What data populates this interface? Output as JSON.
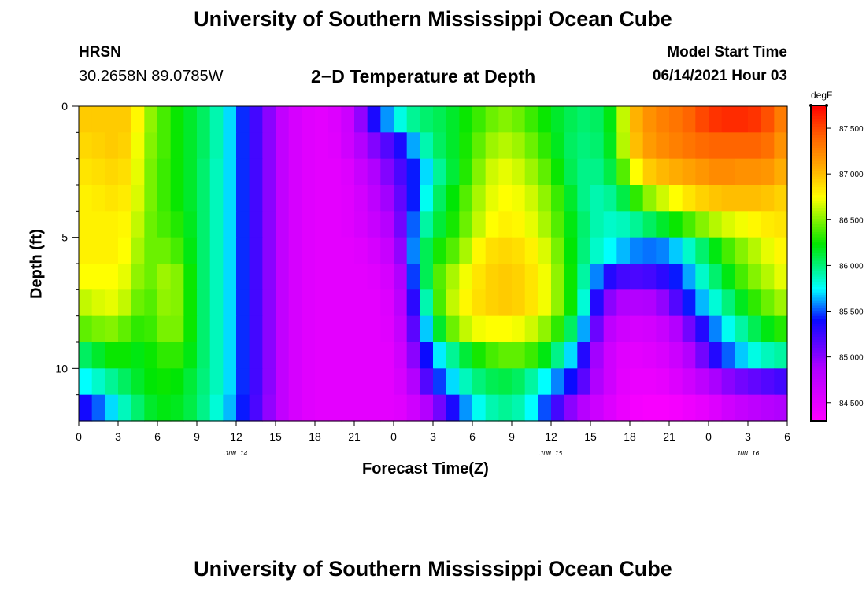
{
  "header": {
    "title": "University of Southern Mississippi Ocean Cube",
    "station": "HRSN",
    "coords": "30.2658N  89.0785W",
    "subtitle": "2−D Temperature at Depth",
    "model_start_label": "Model Start Time",
    "model_start_value": "06/14/2021 Hour 03"
  },
  "footer": {
    "title": "University of Southern Mississippi Ocean Cube"
  },
  "chart_data": {
    "type": "heatmap",
    "title": "2-D Temperature at Depth",
    "xlabel": "Forecast Time(Z)",
    "ylabel": "Depth (ft)",
    "xlim": [
      0,
      54
    ],
    "ylim": [
      0,
      12
    ],
    "x_ticks": [
      "0",
      "3",
      "6",
      "9",
      "12",
      "15",
      "18",
      "21",
      "0",
      "3",
      "6",
      "9",
      "12",
      "15",
      "18",
      "21",
      "0",
      "3",
      "6"
    ],
    "y_ticks": [
      {
        "value": 0,
        "label": "0"
      },
      {
        "value": 5,
        "label": "5"
      },
      {
        "value": 10,
        "label": "10"
      }
    ],
    "y_minor_ticks": [
      1,
      2,
      3,
      4,
      6,
      7,
      8,
      9,
      11
    ],
    "day_labels": [
      {
        "hour": 12,
        "label": "JUN 14"
      },
      {
        "hour": 36,
        "label": "JUN 15"
      },
      {
        "hour": 51,
        "label": "JUN 16"
      }
    ],
    "colorbar": {
      "unit": "degF",
      "min": 84.3,
      "max": 87.75,
      "ticks": [
        "87.500",
        "87.000",
        "86.500",
        "86.000",
        "85.500",
        "85.000",
        "84.500"
      ],
      "tick_values": [
        87.5,
        87.0,
        86.5,
        86.0,
        85.5,
        85.0,
        84.5
      ]
    },
    "depths_ft": [
      0.5,
      1.5,
      2.5,
      3.5,
      4.5,
      5.5,
      6.5,
      7.5,
      8.5,
      9.5,
      10.5,
      11.5
    ],
    "hour_keys": [
      0,
      1,
      2,
      3,
      4,
      5,
      6,
      7,
      8,
      9,
      10,
      11,
      12,
      13,
      14,
      15,
      16,
      17,
      18,
      19,
      20,
      21,
      22,
      23,
      24,
      25,
      26,
      27,
      28,
      29,
      30,
      31,
      32,
      33,
      34,
      35,
      36,
      37,
      38,
      39,
      40,
      41,
      42,
      43,
      44,
      45,
      46,
      47,
      48,
      49,
      50,
      51,
      52,
      53,
      54
    ],
    "temps_degF": [
      [
        86.95,
        86.95,
        86.95,
        86.95,
        86.95,
        86.6,
        86.45,
        86.3,
        86.2,
        86.1,
        86.0,
        85.8,
        85.6,
        85.3,
        85.15,
        84.85,
        84.65,
        84.55,
        84.5,
        84.5,
        84.6,
        84.75,
        85.2,
        85.5,
        85.7,
        85.9,
        86.0,
        86.05,
        86.1,
        86.2,
        86.3,
        86.4,
        86.5,
        86.5,
        86.4,
        86.3,
        86.2,
        86.1,
        86.05,
        86.0,
        86.1,
        86.3,
        86.95,
        87.15,
        87.25,
        87.3,
        87.35,
        87.45,
        87.55,
        87.6,
        87.6,
        87.6,
        87.55,
        87.4,
        87.2
      ],
      [
        86.9,
        86.9,
        86.95,
        86.95,
        86.9,
        86.55,
        86.45,
        86.3,
        86.2,
        86.1,
        86.0,
        85.8,
        85.6,
        85.3,
        85.15,
        84.85,
        84.65,
        84.55,
        84.5,
        84.5,
        84.55,
        84.75,
        84.95,
        85.1,
        85.25,
        85.45,
        85.8,
        86.0,
        86.1,
        86.2,
        86.35,
        86.5,
        86.6,
        86.6,
        86.5,
        86.4,
        86.25,
        86.1,
        86.0,
        86.0,
        86.05,
        86.3,
        86.9,
        87.1,
        87.2,
        87.25,
        87.3,
        87.35,
        87.4,
        87.4,
        87.4,
        87.4,
        87.4,
        87.3,
        87.1
      ],
      [
        86.85,
        86.85,
        86.9,
        86.9,
        86.85,
        86.55,
        86.4,
        86.3,
        86.2,
        86.1,
        85.95,
        85.8,
        85.6,
        85.3,
        85.15,
        84.85,
        84.65,
        84.55,
        84.5,
        84.5,
        84.5,
        84.6,
        84.8,
        84.95,
        85.1,
        85.3,
        85.55,
        85.85,
        86.05,
        86.2,
        86.4,
        86.6,
        86.7,
        86.7,
        86.6,
        86.5,
        86.35,
        86.15,
        86.0,
        85.95,
        86.0,
        86.2,
        86.6,
        86.9,
        87.0,
        87.05,
        87.1,
        87.15,
        87.2,
        87.25,
        87.2,
        87.2,
        87.2,
        87.15,
        87.0
      ],
      [
        86.8,
        86.8,
        86.85,
        86.85,
        86.8,
        86.55,
        86.4,
        86.3,
        86.2,
        86.1,
        85.95,
        85.8,
        85.6,
        85.3,
        85.15,
        84.85,
        84.65,
        84.55,
        84.5,
        84.5,
        84.5,
        84.55,
        84.7,
        84.85,
        85.0,
        85.25,
        85.6,
        85.95,
        86.15,
        86.3,
        86.5,
        86.65,
        86.75,
        86.75,
        86.7,
        86.6,
        86.45,
        86.25,
        86.05,
        85.9,
        85.9,
        86.0,
        86.2,
        86.45,
        86.6,
        86.7,
        86.8,
        86.9,
        86.95,
        87.0,
        87.0,
        87.0,
        87.0,
        86.95,
        86.9
      ],
      [
        86.8,
        86.8,
        86.8,
        86.8,
        86.75,
        86.5,
        86.4,
        86.35,
        86.25,
        86.1,
        85.95,
        85.8,
        85.6,
        85.3,
        85.15,
        84.85,
        84.65,
        84.55,
        84.5,
        84.5,
        84.5,
        84.55,
        84.65,
        84.75,
        84.9,
        85.25,
        85.8,
        86.05,
        86.2,
        86.35,
        86.55,
        86.7,
        86.8,
        86.8,
        86.75,
        86.65,
        86.5,
        86.3,
        86.1,
        85.95,
        85.85,
        85.85,
        85.9,
        86.0,
        86.1,
        86.2,
        86.3,
        86.45,
        86.55,
        86.65,
        86.7,
        86.75,
        86.8,
        86.85,
        86.85
      ],
      [
        86.8,
        86.8,
        86.8,
        86.8,
        86.7,
        86.45,
        86.45,
        86.45,
        86.3,
        86.1,
        85.95,
        85.8,
        85.6,
        85.3,
        85.15,
        84.85,
        84.65,
        84.55,
        84.5,
        84.5,
        84.5,
        84.5,
        84.55,
        84.65,
        84.75,
        85.2,
        85.95,
        86.2,
        86.35,
        86.45,
        86.7,
        86.85,
        86.9,
        86.9,
        86.85,
        86.75,
        86.6,
        86.35,
        86.1,
        85.9,
        85.8,
        85.7,
        85.6,
        85.55,
        85.55,
        85.6,
        85.75,
        85.95,
        86.1,
        86.3,
        86.45,
        86.55,
        86.65,
        86.75,
        86.8
      ],
      [
        86.75,
        86.75,
        86.75,
        86.75,
        86.65,
        86.4,
        86.5,
        86.6,
        86.4,
        86.1,
        85.95,
        85.8,
        85.6,
        85.3,
        85.15,
        84.85,
        84.65,
        84.55,
        84.5,
        84.5,
        84.5,
        84.5,
        84.5,
        84.55,
        84.65,
        85.1,
        85.85,
        86.3,
        86.5,
        86.65,
        86.8,
        86.9,
        86.95,
        86.95,
        86.9,
        86.8,
        86.65,
        86.4,
        86.1,
        85.75,
        85.4,
        85.25,
        85.2,
        85.2,
        85.25,
        85.35,
        85.5,
        85.75,
        85.95,
        86.1,
        86.3,
        86.45,
        86.55,
        86.65,
        86.75
      ],
      [
        86.6,
        86.65,
        86.7,
        86.7,
        86.55,
        86.35,
        86.45,
        86.6,
        86.4,
        86.1,
        85.95,
        85.8,
        85.6,
        85.3,
        85.15,
        84.85,
        84.65,
        84.55,
        84.5,
        84.5,
        84.5,
        84.5,
        84.5,
        84.5,
        84.6,
        85.0,
        85.6,
        86.2,
        86.55,
        86.7,
        86.85,
        86.9,
        86.95,
        86.95,
        86.9,
        86.8,
        86.65,
        86.4,
        86.1,
        85.55,
        85.1,
        84.9,
        84.85,
        84.85,
        84.9,
        85.05,
        85.3,
        85.55,
        85.75,
        85.9,
        86.1,
        86.25,
        86.4,
        86.5,
        86.6
      ],
      [
        86.4,
        86.45,
        86.5,
        86.5,
        86.35,
        86.3,
        86.4,
        86.55,
        86.4,
        86.1,
        85.95,
        85.8,
        85.6,
        85.3,
        85.15,
        84.85,
        84.65,
        84.55,
        84.5,
        84.5,
        84.5,
        84.5,
        84.5,
        84.5,
        84.55,
        84.9,
        85.4,
        85.95,
        86.35,
        86.55,
        86.7,
        86.75,
        86.75,
        86.75,
        86.7,
        86.6,
        86.45,
        86.2,
        85.9,
        85.35,
        84.85,
        84.7,
        84.6,
        84.6,
        84.65,
        84.75,
        84.95,
        85.2,
        85.45,
        85.7,
        85.85,
        86.0,
        86.15,
        86.25,
        86.35
      ],
      [
        86.0,
        86.1,
        86.2,
        86.3,
        86.2,
        86.2,
        86.3,
        86.35,
        86.3,
        86.1,
        85.95,
        85.8,
        85.6,
        85.3,
        85.15,
        84.85,
        84.65,
        84.55,
        84.5,
        84.5,
        84.5,
        84.5,
        84.5,
        84.5,
        84.5,
        84.8,
        85.2,
        85.6,
        85.85,
        86.05,
        86.2,
        86.35,
        86.4,
        86.45,
        86.4,
        86.3,
        86.1,
        85.85,
        85.55,
        85.1,
        84.75,
        84.55,
        84.5,
        84.5,
        84.55,
        84.6,
        84.75,
        84.95,
        85.2,
        85.45,
        85.6,
        85.75,
        85.85,
        85.9,
        85.95
      ],
      [
        85.7,
        85.8,
        85.9,
        86.0,
        86.1,
        86.2,
        86.25,
        86.25,
        86.2,
        86.05,
        85.95,
        85.8,
        85.6,
        85.3,
        85.15,
        84.85,
        84.65,
        84.55,
        84.5,
        84.5,
        84.5,
        84.5,
        84.5,
        84.5,
        84.5,
        84.7,
        85.0,
        85.35,
        85.6,
        85.8,
        85.95,
        86.05,
        86.1,
        86.1,
        86.0,
        85.85,
        85.65,
        85.5,
        85.3,
        85.0,
        84.75,
        84.55,
        84.45,
        84.45,
        84.45,
        84.5,
        84.6,
        84.7,
        84.85,
        84.95,
        85.05,
        85.1,
        85.15,
        85.2,
        85.25
      ],
      [
        85.3,
        85.45,
        85.6,
        85.8,
        85.95,
        86.1,
        86.2,
        86.2,
        86.15,
        86.05,
        85.9,
        85.75,
        85.55,
        85.3,
        85.1,
        84.85,
        84.65,
        84.55,
        84.5,
        84.5,
        84.5,
        84.5,
        84.5,
        84.5,
        84.5,
        84.55,
        84.75,
        84.95,
        85.2,
        85.5,
        85.7,
        85.85,
        85.95,
        85.95,
        85.85,
        85.65,
        85.35,
        85.1,
        84.9,
        84.75,
        84.6,
        84.5,
        84.4,
        84.35,
        84.35,
        84.35,
        84.4,
        84.45,
        84.5,
        84.6,
        84.7,
        84.75,
        84.8,
        84.85,
        84.9
      ]
    ]
  }
}
